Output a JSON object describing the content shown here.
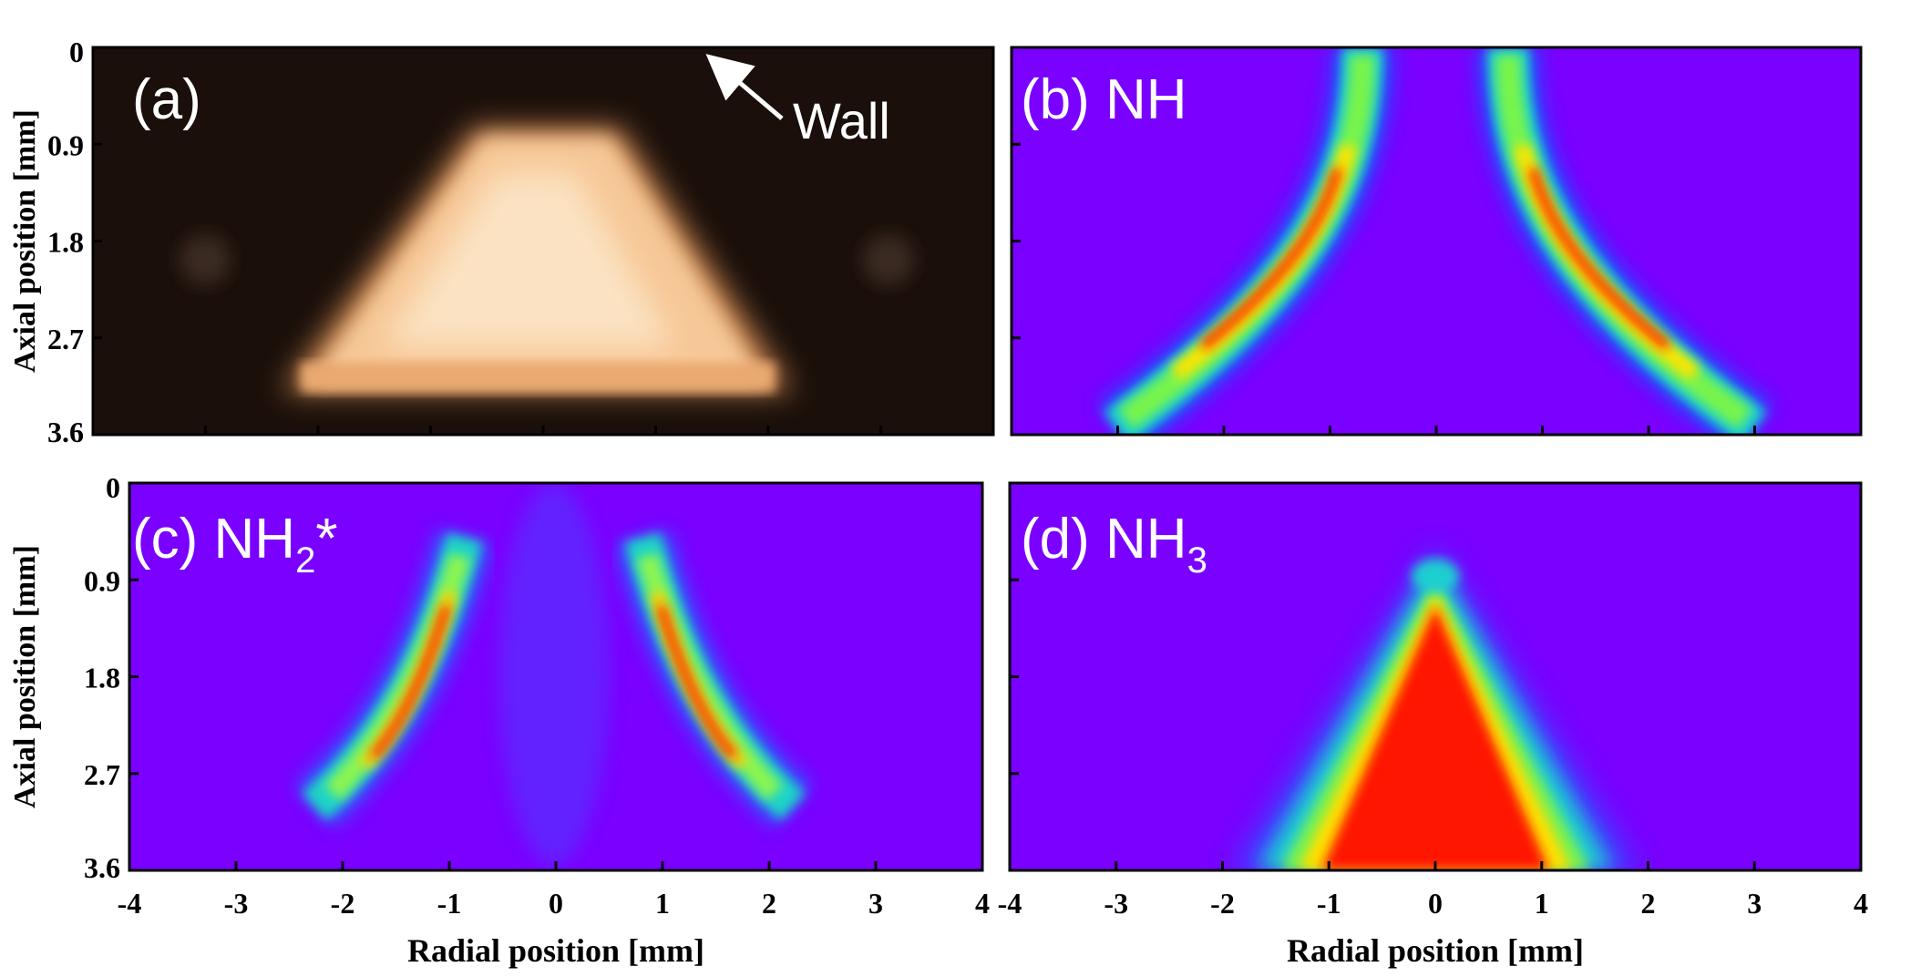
{
  "figure": {
    "y_axis_label": "Axial position [mm]",
    "x_axis_label": "Radial position [mm]",
    "y_ticks": [
      "0",
      "0.9",
      "1.8",
      "2.7",
      "3.6"
    ],
    "x_ticks": [
      "-4",
      "-3",
      "-2",
      "-1",
      "0",
      "1",
      "2",
      "3",
      "4"
    ],
    "wall_label": "Wall"
  },
  "chart_data": [
    {
      "type": "heatmap",
      "panel": "(a)",
      "label": "(a)",
      "image": "flame photograph",
      "xlim": [
        -4,
        4
      ],
      "ylim": [
        3.6,
        0
      ],
      "ylabel": "Axial position [mm]",
      "yticks": [
        0,
        0.9,
        1.8,
        2.7,
        3.6
      ],
      "annotation": "Wall",
      "colors": {
        "background": "#1a0f0a",
        "glow": "#f3c089"
      }
    },
    {
      "type": "heatmap",
      "panel": "(b)",
      "label_prefix": "(b) NH",
      "species": "NH",
      "xlim": [
        -4,
        4
      ],
      "ylim": [
        3.6,
        0
      ],
      "xticks": [
        -4,
        -3,
        -2,
        -1,
        0,
        1,
        2,
        3,
        4
      ],
      "yticks": [
        0,
        0.9,
        1.8,
        2.7,
        3.6
      ],
      "shape": "two curved bands",
      "colors": {
        "background": "#7a00ff",
        "peak": "#ff1a00"
      }
    },
    {
      "type": "heatmap",
      "panel": "(c)",
      "label_prefix": "(c) NH",
      "label_sub": "2",
      "label_suffix": "*",
      "species": "NH2*",
      "xlim": [
        -4,
        4
      ],
      "ylim": [
        3.6,
        0
      ],
      "xticks": [
        -4,
        -3,
        -2,
        -1,
        0,
        1,
        2,
        3,
        4
      ],
      "yticks": [
        0,
        0.9,
        1.8,
        2.7,
        3.6
      ],
      "xlabel": "Radial position [mm]",
      "ylabel": "Axial position [mm]",
      "shape": "two curved bands",
      "colors": {
        "background": "#7a00ff",
        "peak": "#ff1a00"
      }
    },
    {
      "type": "heatmap",
      "panel": "(d)",
      "label_prefix": "(d) NH",
      "label_sub": "3",
      "species": "NH3",
      "xlim": [
        -4,
        4
      ],
      "ylim": [
        3.6,
        0
      ],
      "xticks": [
        -4,
        -3,
        -2,
        -1,
        0,
        1,
        2,
        3,
        4
      ],
      "yticks": [
        0,
        0.9,
        1.8,
        2.7,
        3.6
      ],
      "xlabel": "Radial position [mm]",
      "shape": "filled cone",
      "colors": {
        "background": "#7a00ff",
        "peak": "#ff1a00"
      }
    }
  ]
}
